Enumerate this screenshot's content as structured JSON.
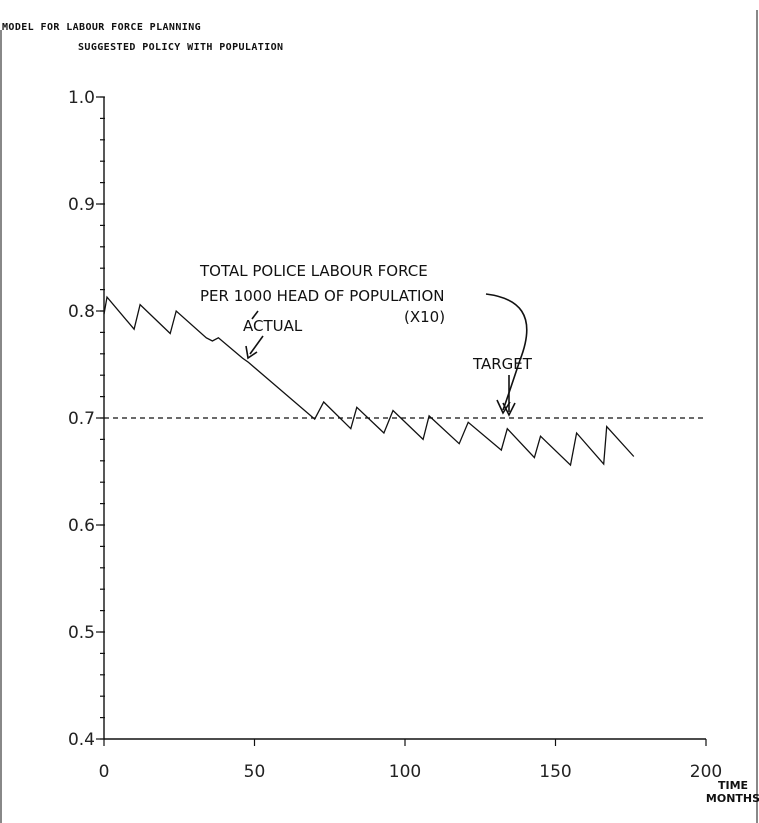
{
  "header": {
    "line1": "MODEL FOR LABOUR FORCE PLANNING",
    "line2": "SUGGESTED POLICY WITH POPULATION"
  },
  "annotations": {
    "title_line1": "TOTAL POLICE LABOUR FORCE",
    "title_line2": "PER 1000 HEAD OF POPULATION",
    "title_line3": "(X10)",
    "actual": "ACTUAL",
    "target": "TARGET"
  },
  "axis_text": {
    "x_unit_line1": "TIME",
    "x_unit_line2": "MONTHS"
  },
  "chart_data": {
    "type": "line",
    "title": "MODEL FOR LABOUR FORCE PLANNING",
    "subtitle": "SUGGESTED POLICY WITH POPULATION",
    "xlabel": "TIME MONTHS",
    "ylabel": "",
    "xlim": [
      0,
      200
    ],
    "ylim": [
      0.4,
      1.0
    ],
    "x_ticks": [
      0,
      50,
      100,
      150,
      200
    ],
    "x_tick_labels": [
      "0",
      "50",
      "100",
      "150",
      "200"
    ],
    "y_ticks": [
      0.4,
      0.5,
      0.6,
      0.7,
      0.8,
      0.9,
      1.0
    ],
    "y_tick_labels": [
      "0.4",
      "0.5",
      "0.6",
      "0.7",
      "0.8",
      "0.9",
      "1.0"
    ],
    "grid": false,
    "series": [
      {
        "name": "ACTUAL",
        "style": "solid",
        "x": [
          0,
          1,
          10,
          12,
          22,
          24,
          34,
          36,
          38,
          46,
          48,
          70,
          73,
          82,
          84,
          93,
          96,
          106,
          108,
          118,
          121,
          132,
          134,
          143,
          145,
          155,
          157,
          166,
          167,
          176
        ],
        "y": [
          0.797,
          0.813,
          0.783,
          0.806,
          0.779,
          0.8,
          0.775,
          0.772,
          0.775,
          0.756,
          0.752,
          0.699,
          0.715,
          0.69,
          0.71,
          0.686,
          0.707,
          0.68,
          0.702,
          0.676,
          0.696,
          0.67,
          0.69,
          0.663,
          0.683,
          0.656,
          0.686,
          0.657,
          0.692,
          0.664
        ]
      },
      {
        "name": "TARGET",
        "style": "dashed",
        "x": [
          0,
          200
        ],
        "y": [
          0.7,
          0.7
        ]
      }
    ],
    "colors": {
      "line": "#111111",
      "background": "#ffffff"
    }
  }
}
